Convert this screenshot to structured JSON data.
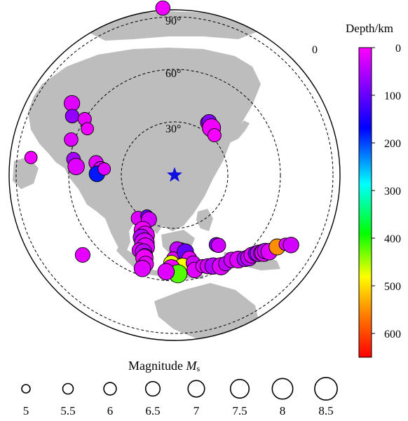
{
  "map": {
    "ring_labels": [
      "90°",
      "60°",
      "30°"
    ],
    "azimuth_label": "0",
    "station_icon": "star-icon",
    "station_color": "#1010e0",
    "land_color": "#bdbdbd",
    "events": [
      {
        "a": -4,
        "d": 95,
        "dep": 10,
        "m": 6.5
      },
      {
        "a": -55,
        "d": 71,
        "dep": 20,
        "m": 6.8
      },
      {
        "a": -60,
        "d": 67,
        "dep": 70,
        "m": 6.3
      },
      {
        "a": -58,
        "d": 60,
        "dep": 15,
        "m": 6.2
      },
      {
        "a": -62,
        "d": 56,
        "dep": 10,
        "m": 6.0
      },
      {
        "a": -71,
        "d": 62,
        "dep": 20,
        "m": 6.3
      },
      {
        "a": -83,
        "d": 82,
        "dep": 10,
        "m": 6.0
      },
      {
        "a": -81,
        "d": 58,
        "dep": 60,
        "m": 6.3
      },
      {
        "a": -85,
        "d": 56,
        "dep": 20,
        "m": 7.0
      },
      {
        "a": -81,
        "d": 45,
        "dep": 20,
        "m": 6.5
      },
      {
        "a": -85,
        "d": 42,
        "dep": 30,
        "m": 6.5
      },
      {
        "a": -89,
        "d": 44,
        "dep": 180,
        "m": 6.8
      },
      {
        "a": -85,
        "d": 40,
        "dep": 20,
        "m": 6.0
      },
      {
        "a": 32,
        "d": 35,
        "dep": 60,
        "m": 6.3
      },
      {
        "a": 33,
        "d": 36,
        "dep": 80,
        "m": 6.6
      },
      {
        "a": 38,
        "d": 34,
        "dep": 10,
        "m": 7.4
      },
      {
        "a": 45,
        "d": 32,
        "dep": 5,
        "m": 6.2
      },
      {
        "a": -140,
        "d": 32,
        "dep": 20,
        "m": 6.4
      },
      {
        "a": -146,
        "d": 28,
        "dep": 100,
        "m": 6.0
      },
      {
        "a": -150,
        "d": 29,
        "dep": 30,
        "m": 6.7
      },
      {
        "a": -150,
        "d": 36,
        "dep": 10,
        "m": 7.2
      },
      {
        "a": -154,
        "d": 38,
        "dep": 20,
        "m": 7.5
      },
      {
        "a": -152,
        "d": 40,
        "dep": 50,
        "m": 7.0
      },
      {
        "a": -156,
        "d": 42,
        "dep": 30,
        "m": 7.8
      },
      {
        "a": -158,
        "d": 44,
        "dep": 20,
        "m": 7.4
      },
      {
        "a": -155,
        "d": 47,
        "dep": 20,
        "m": 6.6
      },
      {
        "a": -158,
        "d": 47,
        "dep": 40,
        "m": 7.0
      },
      {
        "a": -160,
        "d": 49,
        "dep": 80,
        "m": 6.8
      },
      {
        "a": -160,
        "d": 50,
        "dep": 10,
        "m": 7.2
      },
      {
        "a": -162,
        "d": 53,
        "dep": 15,
        "m": 6.8
      },
      {
        "a": -161,
        "d": 56,
        "dep": 20,
        "m": 7.0
      },
      {
        "a": -131,
        "d": 69,
        "dep": 15,
        "m": 6.6
      },
      {
        "a": 175,
        "d": 43,
        "dep": 30,
        "m": 6.8
      },
      {
        "a": 178,
        "d": 42,
        "dep": 40,
        "m": 6.6
      },
      {
        "a": -179,
        "d": 47,
        "dep": 20,
        "m": 6.0
      },
      {
        "a": 172,
        "d": 44,
        "dep": 100,
        "m": 7.0
      },
      {
        "a": -178,
        "d": 50,
        "dep": 470,
        "m": 6.8
      },
      {
        "a": 170,
        "d": 48,
        "dep": 15,
        "m": 6.6
      },
      {
        "a": 175,
        "d": 52,
        "dep": 480,
        "m": 7.0
      },
      {
        "a": -178,
        "d": 53,
        "dep": 10,
        "m": 7.3
      },
      {
        "a": 168,
        "d": 51,
        "dep": 30,
        "m": 6.5
      },
      {
        "a": 178,
        "d": 56,
        "dep": 420,
        "m": 7.4
      },
      {
        "a": -175,
        "d": 55,
        "dep": 20,
        "m": 7.0
      },
      {
        "a": 168,
        "d": 55,
        "dep": 20,
        "m": 6.8
      },
      {
        "a": 163,
        "d": 54,
        "dep": 20,
        "m": 6.2
      },
      {
        "a": 160,
        "d": 55,
        "dep": 30,
        "m": 6.7
      },
      {
        "a": 157,
        "d": 56,
        "dep": 50,
        "m": 7.0
      },
      {
        "a": 153,
        "d": 58,
        "dep": 20,
        "m": 7.2
      },
      {
        "a": 150,
        "d": 58,
        "dep": 40,
        "m": 6.5
      },
      {
        "a": 146,
        "d": 58,
        "dep": 30,
        "m": 6.8
      },
      {
        "a": 143,
        "d": 60,
        "dep": 20,
        "m": 7.1
      },
      {
        "a": 140,
        "d": 62,
        "dep": 60,
        "m": 6.8
      },
      {
        "a": 138,
        "d": 63,
        "dep": 40,
        "m": 7.0
      },
      {
        "a": 136,
        "d": 63,
        "dep": 20,
        "m": 6.8
      },
      {
        "a": 134,
        "d": 64,
        "dep": 80,
        "m": 6.7
      },
      {
        "a": 133,
        "d": 65,
        "dep": 50,
        "m": 7.0
      },
      {
        "a": 132,
        "d": 66,
        "dep": 30,
        "m": 6.6
      },
      {
        "a": 131,
        "d": 67,
        "dep": 20,
        "m": 7.3
      },
      {
        "a": 130,
        "d": 67,
        "dep": 40,
        "m": 6.8
      },
      {
        "a": 129,
        "d": 69,
        "dep": 20,
        "m": 7.0
      },
      {
        "a": 125,
        "d": 71,
        "dep": 550,
        "m": 6.9
      },
      {
        "a": 122,
        "d": 74,
        "dep": 20,
        "m": 6.0
      },
      {
        "a": 121,
        "d": 77,
        "dep": 30,
        "m": 6.8
      },
      {
        "a": 149,
        "d": 46,
        "dep": 80,
        "m": 6.5
      },
      {
        "a": 148,
        "d": 47,
        "dep": 30,
        "m": 6.5
      }
    ]
  },
  "colorbar": {
    "title": "Depth/km",
    "ticks": [
      "0",
      "100",
      "200",
      "300",
      "400",
      "500",
      "600"
    ],
    "min": 0,
    "max": 650,
    "colors": [
      "#ff0000",
      "#ffa500",
      "#ffff00",
      "#00ff00",
      "#00ffff",
      "#0000ff",
      "#8800ff",
      "#ff00ff"
    ]
  },
  "magnitude_legend": {
    "title_prefix": "Magnitude ",
    "title_symbol": "M",
    "title_subscript": "s",
    "labels": [
      "5",
      "5.5",
      "6",
      "6.5",
      "7",
      "7.5",
      "8",
      "8.5"
    ],
    "values": [
      5,
      5.5,
      6,
      6.5,
      7,
      7.5,
      8,
      8.5
    ]
  }
}
